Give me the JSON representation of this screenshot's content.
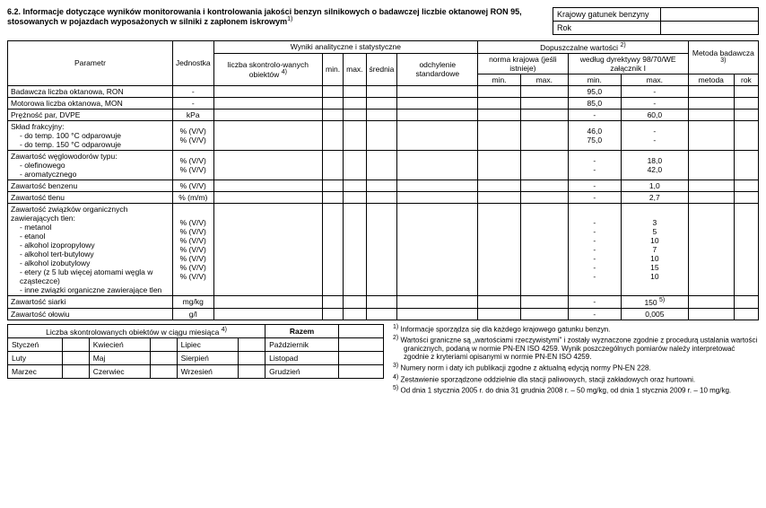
{
  "header": {
    "section_num": "6.2.",
    "title": "Informacje dotyczące wyników monitorowania i kontrolowania jakości benzyn silnikowych o badawczej liczbie oktanowej RON 95, stosowanych w pojazdach wyposażonych w silniki z zapłonem iskrowym",
    "title_sup": "1)",
    "meta_label1": "Krajowy gatunek benzyny",
    "meta_label2": "Rok"
  },
  "main_table": {
    "h_parametr": "Parametr",
    "h_jednostka": "Jednostka",
    "h_wyniki": "Wyniki analityczne i statystyczne",
    "h_dopuszczalne": "Dopuszczalne wartości",
    "h_dopuszczalne_sup": "2)",
    "h_metoda": "Metoda badawcza",
    "h_metoda_sup": "3)",
    "h_liczba": "liczba skontrolo-wanych obiektów",
    "h_liczba_sup": "4)",
    "h_min": "min.",
    "h_max": "max.",
    "h_srednia": "średnia",
    "h_odchylenie": "odchylenie standardowe",
    "h_norma_krajowa": "norma krajowa (jeśli istnieje)",
    "h_dyrektywa": "według dyrektywy 98/70/WE załącznik I",
    "h_metoda_col": "metoda",
    "h_rok_col": "rok",
    "rows": [
      {
        "p": "Badawcza liczba oktanowa, RON",
        "u": "-",
        "dmin": "95,0",
        "dmax": "-"
      },
      {
        "p": "Motorowa liczba oktanowa, MON",
        "u": "-",
        "dmin": "85,0",
        "dmax": "-"
      },
      {
        "p": "Prężność par, DVPE",
        "u": "kPa",
        "dmin": "-",
        "dmax": "60,0"
      },
      {
        "p": "Skład frakcyjny:",
        "sub1": "- do temp. 100 °C odparowuje",
        "sub2": "- do temp. 150 °C odparowuje",
        "u1": "% (V/V)",
        "u2": "% (V/V)",
        "dmin1": "46,0",
        "dmax1": "-",
        "dmin2": "75,0",
        "dmax2": "-"
      },
      {
        "p": "Zawartość węglowodorów typu:",
        "sub1": "- olefinowego",
        "sub2": "- aromatycznego",
        "u1": "% (V/V)",
        "u2": "% (V/V)",
        "dmin1": "-",
        "dmax1": "18,0",
        "dmin2": "-",
        "dmax2": "42,0"
      },
      {
        "p": "Zawartość benzenu",
        "u": "% (V/V)",
        "dmin": "-",
        "dmax": "1,0"
      },
      {
        "p": "Zawartość tlenu",
        "u": "% (m/m)",
        "dmin": "-",
        "dmax": "2,7"
      },
      {
        "p": "Zawartość związków organicznych zawierających tlen:",
        "subs": [
          {
            "l": "- metanol",
            "u": "% (V/V)",
            "dmin": "-",
            "dmax": "3"
          },
          {
            "l": "- etanol",
            "u": "% (V/V)",
            "dmin": "-",
            "dmax": "5"
          },
          {
            "l": "- alkohol izopropylowy",
            "u": "% (V/V)",
            "dmin": "-",
            "dmax": "10"
          },
          {
            "l": "- alkohol tert-butylowy",
            "u": "% (V/V)",
            "dmin": "-",
            "dmax": "7"
          },
          {
            "l": "- alkohol izobutylowy",
            "u": "% (V/V)",
            "dmin": "-",
            "dmax": "10"
          },
          {
            "l": "- etery (z 5 lub więcej atomami węgla w cząsteczce)",
            "u": "% (V/V)",
            "dmin": "-",
            "dmax": "15"
          },
          {
            "l": "- inne związki organiczne zawierające tlen",
            "u": "% (V/V)",
            "dmin": "-",
            "dmax": "10"
          }
        ]
      },
      {
        "p": "Zawartość siarki",
        "u": "mg/kg",
        "dmin": "-",
        "dmax": "150",
        "dmax_sup": "5)"
      },
      {
        "p": "Zawartość ołowiu",
        "u": "g/l",
        "dmin": "-",
        "dmax": "0,005"
      }
    ]
  },
  "months_table": {
    "title": "Liczba skontrolowanych obiektów w ciągu miesiąca",
    "title_sup": "4)",
    "razem": "Razem",
    "months": [
      "Styczeń",
      "Kwiecień",
      "Lipiec",
      "Październik",
      "Luty",
      "Maj",
      "Sierpień",
      "Listopad",
      "Marzec",
      "Czerwiec",
      "Wrzesień",
      "Grudzień"
    ]
  },
  "footnotes": {
    "f1_sup": "1)",
    "f1": "Informacje sporządza się dla każdego krajowego gatunku benzyn.",
    "f2_sup": "2)",
    "f2": "Wartości graniczne są „wartościami rzeczywistymi\" i zostały wyznaczone zgodnie z procedurą ustalania wartości granicznych, podaną w normie PN-EN ISO 4259. Wynik poszczególnych pomiarów należy interpretować zgodnie z kryteriami opisanymi w normie PN-EN ISO 4259.",
    "f3_sup": "3)",
    "f3": "Numery norm i daty ich publikacji zgodne z aktualną edycją normy PN-EN 228.",
    "f4_sup": "4)",
    "f4": "Zestawienie sporządzone oddzielnie dla stacji paliwowych, stacji zakładowych oraz hurtowni.",
    "f5_sup": "5)",
    "f5": "Od dnia 1 stycznia 2005 r. do dnia 31 grudnia 2008 r. – 50 mg/kg, od dnia 1 stycznia 2009 r. – 10 mg/kg."
  }
}
